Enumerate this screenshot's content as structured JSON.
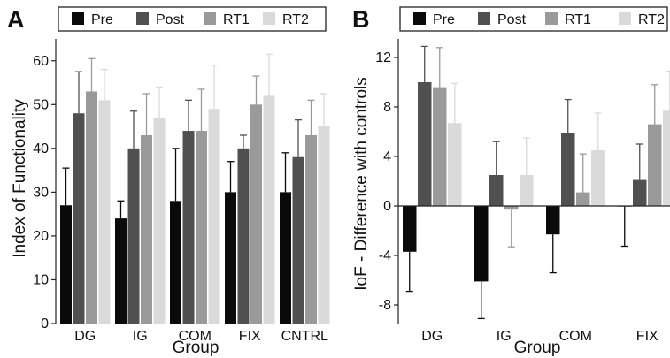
{
  "chart_data": [
    {
      "type": "bar",
      "panel_label": "A",
      "ylabel": "Index of Functionality",
      "xlabel": "Group",
      "categories": [
        "DG",
        "IG",
        "COM",
        "FIX",
        "CNTRL"
      ],
      "ylim": [
        0,
        65
      ],
      "yticks": [
        0,
        10,
        20,
        30,
        40,
        50,
        60
      ],
      "legend_position": "top",
      "series": [
        {
          "name": "Pre",
          "color": "#0a0a0a",
          "values": [
            27,
            24,
            28,
            30,
            30
          ],
          "errors": [
            8.5,
            4,
            12,
            7,
            9
          ]
        },
        {
          "name": "Post",
          "color": "#505050",
          "values": [
            48,
            40,
            44,
            40,
            38
          ],
          "errors": [
            9.5,
            8.5,
            7,
            3,
            8.5
          ]
        },
        {
          "name": "RT1",
          "color": "#9a9a9a",
          "values": [
            53,
            43,
            44,
            50,
            43
          ],
          "errors": [
            7.5,
            9.5,
            9.5,
            6.5,
            8
          ]
        },
        {
          "name": "RT2",
          "color": "#dadada",
          "values": [
            51,
            47,
            49,
            52,
            45
          ],
          "errors": [
            7,
            7,
            10,
            9.5,
            7.5
          ]
        }
      ]
    },
    {
      "type": "bar",
      "panel_label": "B",
      "ylabel": "IoF - Difference with controls",
      "xlabel": "Group",
      "categories": [
        "DG",
        "IG",
        "COM",
        "FIX"
      ],
      "ylim": [
        -9.5,
        13.5
      ],
      "yticks": [
        -8,
        -4,
        0,
        4,
        8,
        12
      ],
      "legend_position": "top",
      "series": [
        {
          "name": "Pre",
          "color": "#0a0a0a",
          "values": [
            -3.7,
            -6.1,
            -2.3,
            -0.05
          ],
          "errors": [
            3.2,
            3.0,
            3.1,
            3.2
          ]
        },
        {
          "name": "Post",
          "color": "#505050",
          "values": [
            10.0,
            2.5,
            5.9,
            2.1
          ],
          "errors": [
            2.9,
            2.7,
            2.7,
            2.9
          ]
        },
        {
          "name": "RT1",
          "color": "#9a9a9a",
          "values": [
            9.6,
            -0.3,
            1.1,
            6.6
          ],
          "errors": [
            3.2,
            3.0,
            3.1,
            3.2
          ]
        },
        {
          "name": "RT2",
          "color": "#dadada",
          "values": [
            6.7,
            2.5,
            4.5,
            7.7
          ],
          "errors": [
            3.2,
            3.0,
            3.0,
            3.2
          ]
        }
      ]
    }
  ]
}
